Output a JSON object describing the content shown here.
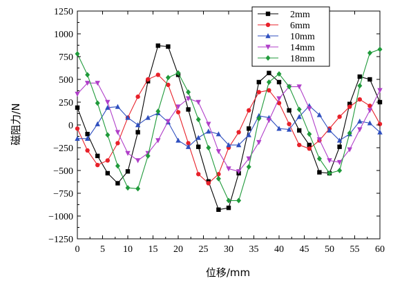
{
  "chart_data": {
    "type": "line",
    "title": "",
    "xlabel": "位移/mm",
    "ylabel": "磁阻力/N",
    "xlim": [
      0,
      60
    ],
    "ylim": [
      -1250,
      1250
    ],
    "x_ticks": [
      0,
      5,
      10,
      15,
      20,
      25,
      30,
      35,
      40,
      45,
      50,
      55,
      60
    ],
    "y_ticks": [
      -1250,
      -1000,
      -750,
      -500,
      -250,
      0,
      250,
      500,
      750,
      1000,
      1250
    ],
    "grid": false,
    "legend_position": "top-right",
    "series": [
      {
        "name": "2mm",
        "color": "#000000",
        "marker": "square",
        "x": [
          0,
          2,
          4,
          6,
          8,
          10,
          12,
          14,
          16,
          18,
          20,
          22,
          24,
          26,
          28,
          30,
          32,
          34,
          36,
          38,
          40,
          42,
          44,
          46,
          48,
          50,
          52,
          54,
          56,
          58,
          60
        ],
        "y": [
          190,
          -100,
          -340,
          -530,
          -640,
          -510,
          -80,
          480,
          870,
          860,
          550,
          170,
          -240,
          -620,
          -930,
          -910,
          -530,
          -40,
          470,
          570,
          470,
          160,
          -60,
          -220,
          -520,
          -530,
          -240,
          230,
          530,
          500,
          250
        ]
      },
      {
        "name": "6mm",
        "color": "#e8212a",
        "marker": "circle",
        "x": [
          0,
          2,
          4,
          6,
          8,
          10,
          12,
          14,
          16,
          18,
          20,
          22,
          24,
          26,
          28,
          30,
          32,
          34,
          36,
          38,
          40,
          42,
          44,
          46,
          48,
          50,
          52,
          54,
          56,
          58,
          60
        ],
        "y": [
          -40,
          -280,
          -440,
          -390,
          -200,
          80,
          310,
          500,
          550,
          440,
          140,
          -200,
          -540,
          -640,
          -540,
          -250,
          -80,
          160,
          360,
          380,
          240,
          10,
          -220,
          -260,
          -170,
          -40,
          90,
          200,
          280,
          210,
          10
        ]
      },
      {
        "name": "10mm",
        "color": "#2f4fbf",
        "marker": "triangle-up",
        "x": [
          0,
          2,
          4,
          6,
          8,
          10,
          12,
          14,
          16,
          18,
          20,
          22,
          24,
          26,
          28,
          30,
          32,
          34,
          36,
          38,
          40,
          42,
          44,
          46,
          48,
          50,
          52,
          54,
          56,
          58,
          60
        ],
        "y": [
          -150,
          -150,
          10,
          190,
          200,
          80,
          0,
          80,
          130,
          30,
          -170,
          -240,
          -140,
          -70,
          -100,
          -220,
          -220,
          -110,
          100,
          80,
          -40,
          -50,
          90,
          210,
          110,
          -60,
          -170,
          -100,
          40,
          20,
          -80
        ]
      },
      {
        "name": "14mm",
        "color": "#b03fc9",
        "marker": "triangle-down",
        "x": [
          0,
          2,
          4,
          6,
          8,
          10,
          12,
          14,
          16,
          18,
          20,
          22,
          24,
          26,
          28,
          30,
          32,
          34,
          36,
          38,
          40,
          42,
          44,
          46,
          48,
          50,
          52,
          54,
          56,
          58,
          60
        ],
        "y": [
          340,
          460,
          460,
          250,
          -80,
          -310,
          -390,
          -310,
          -170,
          40,
          200,
          290,
          250,
          10,
          -290,
          -480,
          -510,
          -370,
          -190,
          50,
          290,
          420,
          420,
          180,
          -160,
          -390,
          -410,
          -270,
          -50,
          160,
          380
        ]
      },
      {
        "name": "18mm",
        "color": "#1f9a3a",
        "marker": "diamond",
        "x": [
          0,
          2,
          4,
          6,
          8,
          10,
          12,
          14,
          16,
          18,
          20,
          22,
          24,
          26,
          28,
          30,
          32,
          34,
          36,
          38,
          40,
          42,
          44,
          46,
          48,
          50,
          52,
          54,
          56,
          58,
          60
        ],
        "y": [
          780,
          550,
          240,
          -110,
          -450,
          -690,
          -700,
          -340,
          150,
          520,
          570,
          360,
          60,
          -250,
          -590,
          -830,
          -830,
          -460,
          70,
          470,
          560,
          420,
          170,
          -100,
          -370,
          -530,
          -500,
          -90,
          430,
          790,
          830
        ]
      }
    ]
  }
}
